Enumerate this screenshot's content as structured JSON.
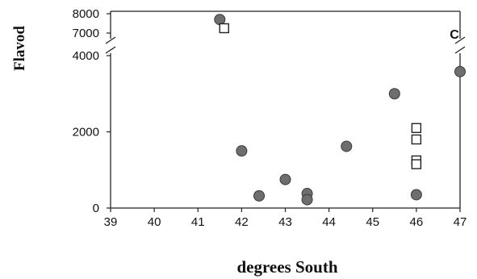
{
  "chart_data": {
    "type": "scatter",
    "title": "",
    "panel_label": "C",
    "xlabel": "degrees South",
    "ylabel": "Flavod",
    "xlim": [
      39,
      47
    ],
    "x_ticks": [
      "39",
      "40",
      "41",
      "42",
      "43",
      "44",
      "45",
      "46",
      "47"
    ],
    "y_axis_broken": true,
    "y_lower_range": [
      0,
      4000
    ],
    "y_upper_range": [
      7000,
      8000
    ],
    "y_ticks": [
      {
        "value": 0,
        "label": "0"
      },
      {
        "value": 2000,
        "label": "2000"
      },
      {
        "value": 4000,
        "label": "4000"
      },
      {
        "value": 7000,
        "label": "7000"
      },
      {
        "value": 8000,
        "label": "8000"
      }
    ],
    "grid": false,
    "series": [
      {
        "marker": "filled-circle",
        "color": "#6e6e6e",
        "points": [
          {
            "x": 41.5,
            "y": 7700
          },
          {
            "x": 42.0,
            "y": 1500
          },
          {
            "x": 42.4,
            "y": 320
          },
          {
            "x": 43.0,
            "y": 750
          },
          {
            "x": 43.5,
            "y": 380
          },
          {
            "x": 43.5,
            "y": 220
          },
          {
            "x": 44.4,
            "y": 1620
          },
          {
            "x": 45.5,
            "y": 3000
          },
          {
            "x": 46.0,
            "y": 350
          },
          {
            "x": 47.0,
            "y": 3580
          }
        ]
      },
      {
        "marker": "open-square",
        "color": "#ffffff",
        "points": [
          {
            "x": 41.6,
            "y": 7250
          },
          {
            "x": 46.0,
            "y": 2100
          },
          {
            "x": 46.0,
            "y": 1800
          },
          {
            "x": 46.0,
            "y": 1250
          },
          {
            "x": 46.0,
            "y": 1150
          }
        ]
      }
    ]
  }
}
